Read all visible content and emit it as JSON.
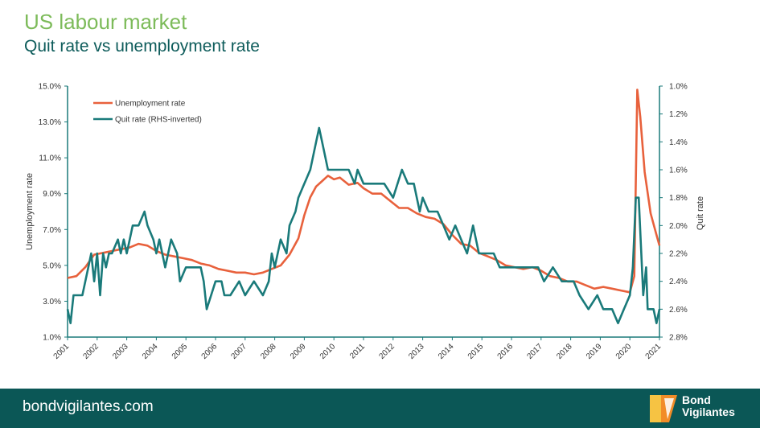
{
  "header": {
    "title": "US labour market",
    "subtitle": "Quit rate vs unemployment rate"
  },
  "footer": {
    "url": "bondvigilantes.com",
    "brand_line1": "Bond",
    "brand_line2": "Vigilantes"
  },
  "colors": {
    "title_green": "#7dbb5a",
    "subtitle_teal": "#0e5c5b",
    "unemployment_line": "#e8613c",
    "quit_line": "#1a7a7a",
    "footer_bg": "#0b5756",
    "logo_orange": "#f28c28",
    "logo_yellow": "#f6c343"
  },
  "chart_data": {
    "type": "line",
    "title": "",
    "xlabel": "",
    "ylabel": "Unemployment rate",
    "y2label": "Quit rate",
    "ylim": [
      1.0,
      15.0
    ],
    "y2lim": [
      1.0,
      2.8
    ],
    "y2_inverted": true,
    "xlim": [
      2001,
      2021
    ],
    "x_ticks": [
      "2001",
      "2002",
      "2003",
      "2004",
      "2005",
      "2006",
      "2007",
      "2008",
      "2009",
      "2010",
      "2011",
      "2012",
      "2013",
      "2014",
      "2015",
      "2016",
      "2017",
      "2018",
      "2019",
      "2020",
      "2021"
    ],
    "y_ticks": [
      "1.0%",
      "3.0%",
      "5.0%",
      "7.0%",
      "9.0%",
      "11.0%",
      "13.0%",
      "15.0%"
    ],
    "y2_ticks": [
      "1.0%",
      "1.2%",
      "1.4%",
      "1.6%",
      "1.8%",
      "2.0%",
      "2.2%",
      "2.4%",
      "2.6%",
      "2.8%"
    ],
    "legend": {
      "position": "top-left",
      "entries": [
        "Unemployment rate",
        "Quit rate (RHS-inverted)"
      ]
    },
    "grid": false,
    "series": [
      {
        "name": "Unemployment rate",
        "axis": "left",
        "x": [
          2001.0,
          2001.3,
          2001.6,
          2001.9,
          2002.2,
          2002.5,
          2002.8,
          2003.1,
          2003.4,
          2003.7,
          2004.0,
          2004.3,
          2004.6,
          2004.9,
          2005.2,
          2005.5,
          2005.8,
          2006.1,
          2006.4,
          2006.7,
          2007.0,
          2007.3,
          2007.6,
          2007.9,
          2008.2,
          2008.5,
          2008.8,
          2009.0,
          2009.2,
          2009.4,
          2009.6,
          2009.8,
          2010.0,
          2010.2,
          2010.5,
          2010.8,
          2011.0,
          2011.3,
          2011.6,
          2011.9,
          2012.2,
          2012.5,
          2012.8,
          2013.1,
          2013.4,
          2013.7,
          2014.0,
          2014.3,
          2014.6,
          2014.9,
          2015.2,
          2015.5,
          2015.8,
          2016.1,
          2016.4,
          2016.7,
          2017.0,
          2017.3,
          2017.6,
          2017.9,
          2018.2,
          2018.5,
          2018.8,
          2019.1,
          2019.4,
          2019.7,
          2020.0,
          2020.15,
          2020.25,
          2020.35,
          2020.5,
          2020.7,
          2020.9,
          2021.0
        ],
        "y": [
          4.3,
          4.4,
          4.9,
          5.6,
          5.7,
          5.8,
          5.9,
          6.0,
          6.2,
          6.1,
          5.8,
          5.6,
          5.5,
          5.4,
          5.3,
          5.1,
          5.0,
          4.8,
          4.7,
          4.6,
          4.6,
          4.5,
          4.6,
          4.8,
          5.0,
          5.6,
          6.5,
          7.8,
          8.8,
          9.4,
          9.7,
          10.0,
          9.8,
          9.9,
          9.5,
          9.6,
          9.3,
          9.0,
          9.0,
          8.6,
          8.2,
          8.2,
          7.9,
          7.7,
          7.6,
          7.3,
          6.7,
          6.2,
          6.1,
          5.7,
          5.5,
          5.3,
          5.0,
          4.9,
          4.8,
          4.9,
          4.7,
          4.4,
          4.3,
          4.1,
          4.1,
          3.9,
          3.7,
          3.8,
          3.7,
          3.6,
          3.5,
          4.4,
          14.8,
          13.3,
          10.2,
          7.9,
          6.7,
          6.1
        ]
      },
      {
        "name": "Quit rate (RHS-inverted)",
        "axis": "right",
        "x": [
          2001.0,
          2001.1,
          2001.2,
          2001.5,
          2001.7,
          2001.8,
          2001.9,
          2002.0,
          2002.1,
          2002.2,
          2002.3,
          2002.4,
          2002.5,
          2002.7,
          2002.8,
          2002.9,
          2003.0,
          2003.2,
          2003.4,
          2003.6,
          2003.7,
          2003.9,
          2004.0,
          2004.1,
          2004.3,
          2004.4,
          2004.5,
          2004.7,
          2004.8,
          2005.0,
          2005.5,
          2005.6,
          2005.7,
          2006.0,
          2006.2,
          2006.3,
          2006.5,
          2006.8,
          2007.0,
          2007.3,
          2007.6,
          2007.8,
          2007.9,
          2008.0,
          2008.2,
          2008.4,
          2008.5,
          2008.7,
          2008.8,
          2009.0,
          2009.2,
          2009.4,
          2009.5,
          2009.6,
          2009.8,
          2010.0,
          2010.2,
          2010.5,
          2010.7,
          2010.8,
          2011.0,
          2011.3,
          2011.5,
          2011.7,
          2012.0,
          2012.3,
          2012.5,
          2012.7,
          2012.9,
          2013.0,
          2013.2,
          2013.5,
          2013.7,
          2013.9,
          2014.1,
          2014.3,
          2014.5,
          2014.7,
          2014.9,
          2015.1,
          2015.4,
          2015.6,
          2015.8,
          2016.0,
          2016.3,
          2016.6,
          2016.9,
          2017.1,
          2017.4,
          2017.7,
          2017.9,
          2018.1,
          2018.3,
          2018.6,
          2018.9,
          2019.1,
          2019.4,
          2019.6,
          2019.8,
          2020.0,
          2020.1,
          2020.2,
          2020.3,
          2020.45,
          2020.55,
          2020.6,
          2020.7,
          2020.8,
          2020.9,
          2021.0
        ],
        "y": [
          2.6,
          2.7,
          2.5,
          2.5,
          2.3,
          2.2,
          2.4,
          2.2,
          2.5,
          2.2,
          2.3,
          2.2,
          2.2,
          2.1,
          2.2,
          2.1,
          2.2,
          2.0,
          2.0,
          1.9,
          2.0,
          2.1,
          2.2,
          2.1,
          2.3,
          2.2,
          2.1,
          2.2,
          2.4,
          2.3,
          2.3,
          2.4,
          2.6,
          2.4,
          2.4,
          2.5,
          2.5,
          2.4,
          2.5,
          2.4,
          2.5,
          2.4,
          2.2,
          2.3,
          2.1,
          2.2,
          2.0,
          1.9,
          1.8,
          1.7,
          1.6,
          1.4,
          1.3,
          1.4,
          1.6,
          1.6,
          1.6,
          1.6,
          1.7,
          1.6,
          1.7,
          1.7,
          1.7,
          1.7,
          1.8,
          1.6,
          1.7,
          1.7,
          1.9,
          1.8,
          1.9,
          1.9,
          2.0,
          2.1,
          2.0,
          2.1,
          2.2,
          2.0,
          2.2,
          2.2,
          2.2,
          2.3,
          2.3,
          2.3,
          2.3,
          2.3,
          2.3,
          2.4,
          2.3,
          2.4,
          2.4,
          2.4,
          2.5,
          2.6,
          2.5,
          2.6,
          2.6,
          2.7,
          2.6,
          2.5,
          2.3,
          1.8,
          1.8,
          2.5,
          2.3,
          2.6,
          2.6,
          2.6,
          2.7,
          2.6
        ]
      }
    ]
  }
}
